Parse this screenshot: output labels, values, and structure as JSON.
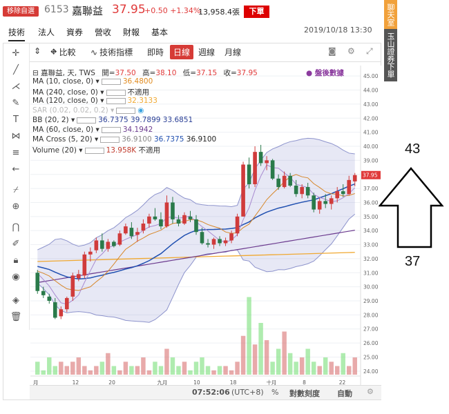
{
  "header": {
    "remove_label": "移除自選",
    "code": "6153",
    "name": "嘉聯益",
    "price": "37.95",
    "change": "+0.50 +1.34%",
    "volume": "13,958.4張",
    "order_label": "下單"
  },
  "side_tabs": {
    "chat": "聊天室",
    "broker": "玉山證券下單"
  },
  "tabs": [
    {
      "label": "技術",
      "active": true
    },
    {
      "label": "法人",
      "active": false
    },
    {
      "label": "資券",
      "active": false
    },
    {
      "label": "營收",
      "active": false
    },
    {
      "label": "財報",
      "active": false
    },
    {
      "label": "基本",
      "active": false
    }
  ],
  "datetime": "2019/10/18 13:30",
  "toolbar": {
    "compare": "比較",
    "indicators": "技術指標",
    "intraday": "即時",
    "daily": "日線",
    "weekly": "週線",
    "monthly": "月線"
  },
  "legend": {
    "title": "嘉聯益, 天, TWS",
    "open_lbl": "開=",
    "open": "37.50",
    "high_lbl": "高=",
    "high": "38.10",
    "low_lbl": "低=",
    "low": "37.15",
    "close_lbl": "收=",
    "close": "37.95",
    "after_hours": "盤後數據",
    "ma10": {
      "label": "MA (10, close, 0)",
      "value": "36.4800"
    },
    "ma240": {
      "label": "MA (240, close, 0)",
      "value": "不適用"
    },
    "ma120": {
      "label": "MA (120, close, 0)",
      "value": "32.3133"
    },
    "sar": {
      "label": "SAR (0.02, 0.02, 0.2)"
    },
    "bb": {
      "label": "BB (20, 2)",
      "v1": "36.7375",
      "v2": "39.7899",
      "v3": "33.6851"
    },
    "ma60": {
      "label": "MA (60, close, 0)",
      "value": "34.1942"
    },
    "macross": {
      "label": "MA Cross (5, 20)",
      "v1": "36.9100",
      "v2": "36.7375",
      "v3": "36.9100"
    },
    "volume": {
      "label": "Volume (20)",
      "v1": "13.958K",
      "v2": "不適用"
    }
  },
  "chart_data": {
    "type": "candlestick",
    "y_ticks": [
      "45.00",
      "44.00",
      "43.00",
      "42.00",
      "41.00",
      "40.00",
      "39.00",
      "38.00",
      "37.00",
      "36.00",
      "35.00",
      "34.00",
      "33.00",
      "32.00",
      "31.00",
      "30.00",
      "29.00",
      "28.00",
      "27.00",
      "26.00",
      "25.00",
      "24.00"
    ],
    "ylim": [
      23.5,
      45.5
    ],
    "price_tag": "37.95",
    "x_ticks": [
      "月",
      "12",
      "20",
      "九月",
      "10",
      "18",
      "十月",
      "8",
      "22"
    ],
    "candles": [
      [
        31.0,
        31.2,
        29.5,
        29.7
      ],
      [
        29.7,
        30.0,
        29.2,
        29.4
      ],
      [
        29.3,
        29.5,
        28.8,
        29.0
      ],
      [
        28.9,
        29.2,
        27.7,
        27.8
      ],
      [
        27.9,
        28.6,
        27.7,
        28.4
      ],
      [
        28.4,
        29.3,
        28.2,
        29.2
      ],
      [
        29.3,
        31.0,
        29.0,
        30.8
      ],
      [
        30.6,
        31.2,
        30.4,
        30.9
      ],
      [
        30.8,
        32.5,
        30.6,
        32.3
      ],
      [
        32.3,
        32.8,
        31.8,
        32.5
      ],
      [
        32.6,
        33.5,
        32.4,
        33.3
      ],
      [
        33.3,
        33.8,
        32.5,
        32.7
      ],
      [
        32.7,
        33.4,
        32.5,
        33.2
      ],
      [
        33.2,
        33.3,
        32.8,
        32.9
      ],
      [
        33.0,
        34.0,
        32.9,
        33.8
      ],
      [
        33.8,
        34.5,
        33.7,
        34.3
      ],
      [
        34.2,
        34.6,
        33.4,
        33.6
      ],
      [
        33.7,
        34.2,
        33.2,
        33.9
      ],
      [
        34.0,
        34.8,
        33.8,
        34.5
      ],
      [
        34.5,
        35.2,
        34.2,
        35.0
      ],
      [
        35.0,
        35.6,
        34.7,
        34.8
      ],
      [
        34.8,
        35.3,
        34.1,
        34.3
      ],
      [
        34.3,
        36.5,
        34.2,
        36.0
      ],
      [
        36.0,
        36.4,
        34.5,
        34.8
      ],
      [
        34.8,
        35.1,
        34.3,
        34.5
      ],
      [
        34.5,
        35.3,
        34.4,
        35.1
      ],
      [
        35.0,
        35.4,
        34.6,
        34.8
      ],
      [
        34.8,
        35.1,
        33.7,
        33.9
      ],
      [
        33.9,
        34.2,
        33.0,
        33.1
      ],
      [
        33.1,
        33.4,
        32.8,
        33.0
      ],
      [
        33.0,
        33.5,
        32.7,
        33.4
      ],
      [
        33.4,
        33.6,
        32.9,
        33.1
      ],
      [
        33.1,
        33.5,
        32.9,
        33.3
      ],
      [
        33.3,
        34.0,
        33.1,
        33.8
      ],
      [
        33.8,
        35.2,
        33.6,
        35.0
      ],
      [
        35.0,
        38.9,
        35.0,
        38.7
      ],
      [
        38.7,
        39.2,
        37.0,
        37.3
      ],
      [
        37.3,
        40.0,
        37.1,
        39.6
      ],
      [
        39.6,
        40.1,
        38.6,
        38.8
      ],
      [
        38.8,
        39.3,
        38.3,
        39.0
      ],
      [
        39.0,
        39.1,
        37.6,
        37.7
      ],
      [
        37.7,
        38.0,
        36.9,
        37.1
      ],
      [
        37.1,
        38.2,
        37.0,
        37.9
      ],
      [
        37.9,
        38.1,
        37.1,
        37.2
      ],
      [
        37.2,
        37.6,
        36.4,
        36.6
      ],
      [
        36.6,
        37.3,
        36.3,
        37.1
      ],
      [
        37.1,
        37.4,
        36.3,
        36.5
      ],
      [
        36.5,
        36.7,
        35.3,
        35.5
      ],
      [
        35.5,
        36.3,
        35.2,
        36.1
      ],
      [
        36.1,
        36.6,
        35.6,
        35.9
      ],
      [
        35.9,
        36.5,
        35.5,
        36.3
      ],
      [
        36.3,
        37.1,
        36.0,
        36.8
      ],
      [
        36.8,
        37.3,
        36.4,
        36.6
      ],
      [
        36.6,
        37.9,
        36.5,
        37.6
      ],
      [
        37.5,
        38.1,
        37.15,
        37.95
      ]
    ],
    "volumes": [
      3,
      1,
      4,
      2,
      3,
      2,
      3,
      4,
      2,
      1,
      2,
      3,
      5,
      2,
      1,
      3,
      2,
      2,
      4,
      1,
      3,
      2,
      6,
      4,
      2,
      3,
      1,
      3,
      4,
      2,
      1,
      2,
      2,
      1,
      3,
      9,
      18,
      7,
      12,
      8,
      3,
      6,
      10,
      5,
      3,
      4,
      6,
      3,
      2,
      4,
      3,
      2,
      5,
      2,
      4
    ],
    "vol_ylim": [
      0,
      20
    ]
  },
  "bottom": {
    "time": "07:52:06",
    "tz": "(UTC+8)",
    "percent": "%",
    "log": "對數刻度",
    "auto": "自動"
  },
  "annotation": {
    "top": "43",
    "bottom": "37"
  }
}
